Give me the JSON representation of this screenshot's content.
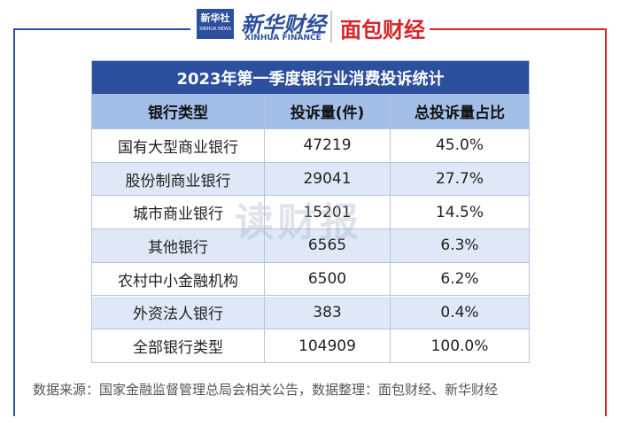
{
  "header": {
    "xinhua_logo": "新华社",
    "xinhua_logo_en": "XINHUA NEWS",
    "finance_logo": "新华财经",
    "finance_logo_en": "XINHUA FINANCE",
    "mianbao_logo": "面包财经"
  },
  "watermark": "读财报",
  "table": {
    "title": "2023年第一季度银行业消费投诉统计",
    "columns": [
      "银行类型",
      "投诉量(件)",
      "总投诉量占比"
    ],
    "rows": [
      [
        "国有大型商业银行",
        "47219",
        "45.0%"
      ],
      [
        "股份制商业银行",
        "29041",
        "27.7%"
      ],
      [
        "城市商业银行",
        "15201",
        "14.5%"
      ],
      [
        "其他银行",
        "6565",
        "6.3%"
      ],
      [
        "农村中小金融机构",
        "6500",
        "6.2%"
      ],
      [
        "外资法人银行",
        "383",
        "0.4%"
      ],
      [
        "全部银行类型",
        "104909",
        "100.0%"
      ]
    ]
  },
  "footer": "数据来源：国家金融监督管理总局会相关公告，数据整理：面包财经、新华财经"
}
